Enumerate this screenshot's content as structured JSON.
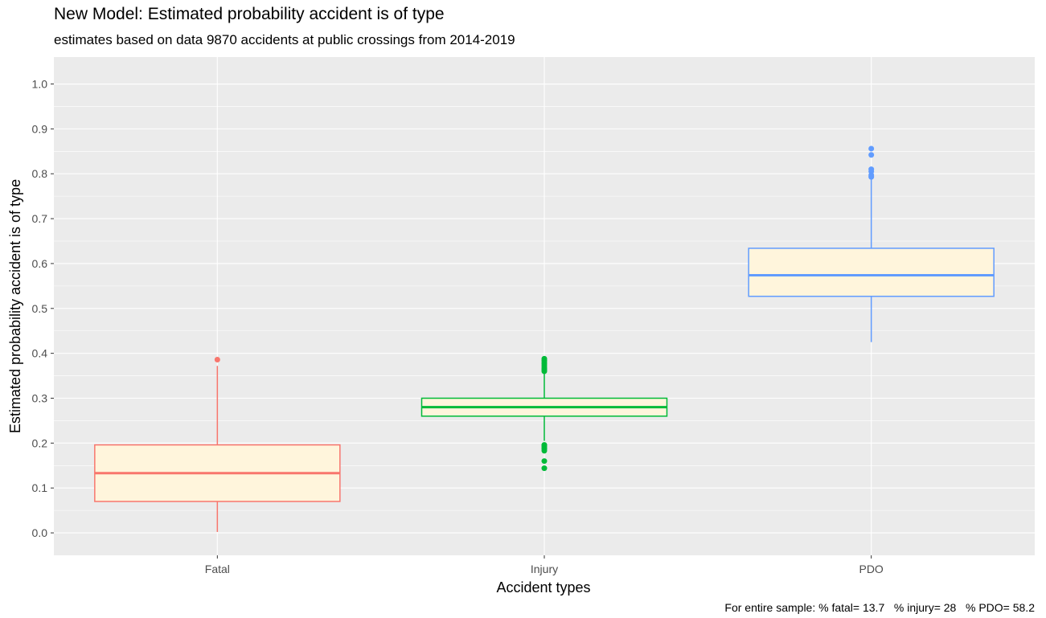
{
  "chart_data": {
    "type": "box",
    "title": "New Model: Estimated probability accident is of type",
    "subtitle": "estimates based on data 9870 accidents at public crossings from 2014-2019",
    "xlabel": "Accident types",
    "ylabel": "Estimated probability accident is of type",
    "caption": "For entire sample: % fatal= 13.7   % injury= 28   % PDO= 58.2",
    "ylim": [
      -0.05,
      1.06
    ],
    "yticks": [
      "0.0",
      "0.1",
      "0.2",
      "0.3",
      "0.4",
      "0.5",
      "0.6",
      "0.7",
      "0.8",
      "0.9",
      "1.0"
    ],
    "grid": true,
    "box_fill": "#FFF5DC",
    "categories": [
      "Fatal",
      "Injury",
      "PDO"
    ],
    "boxes": [
      {
        "name": "Fatal",
        "color": "#F8766D",
        "lower_whisker": 0.002,
        "q1": 0.07,
        "median": 0.133,
        "q3": 0.196,
        "upper_whisker": 0.372,
        "outliers": [
          0.386
        ]
      },
      {
        "name": "Injury",
        "color": "#00BA38",
        "lower_whisker": 0.205,
        "q1": 0.26,
        "median": 0.28,
        "q3": 0.3,
        "upper_whisker": 0.357,
        "outliers": [
          0.144,
          0.16,
          0.183,
          0.187,
          0.19,
          0.193,
          0.196,
          0.36,
          0.362,
          0.365,
          0.368,
          0.372,
          0.376,
          0.38,
          0.384,
          0.388
        ]
      },
      {
        "name": "PDO",
        "color": "#619CFF",
        "lower_whisker": 0.425,
        "q1": 0.527,
        "median": 0.574,
        "q3": 0.634,
        "upper_whisker": 0.79,
        "outliers": [
          0.793,
          0.797,
          0.805,
          0.81,
          0.842,
          0.856
        ]
      }
    ]
  }
}
